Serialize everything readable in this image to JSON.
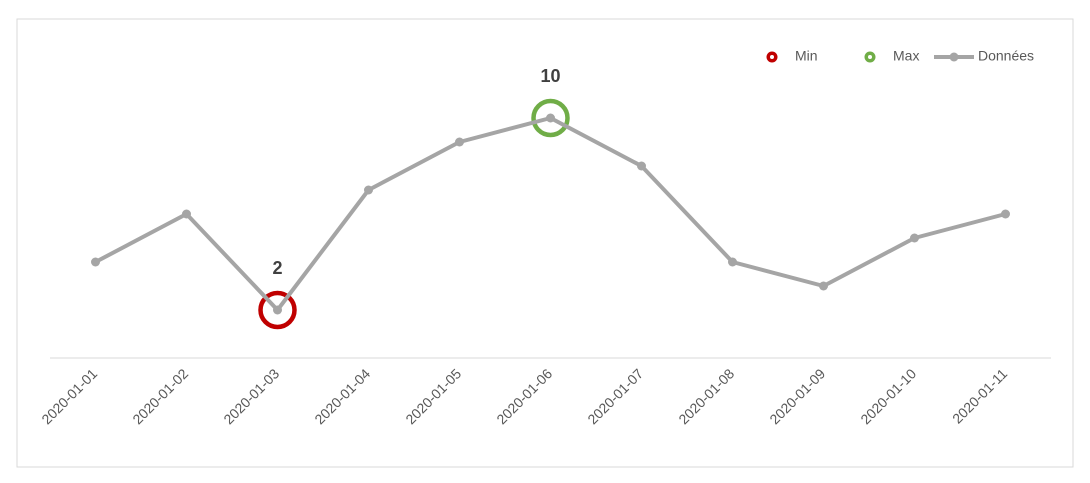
{
  "chart_data": {
    "type": "line",
    "categories": [
      "2020-01-01",
      "2020-01-02",
      "2020-01-03",
      "2020-01-04",
      "2020-01-05",
      "2020-01-06",
      "2020-01-07",
      "2020-01-08",
      "2020-01-09",
      "2020-01-10",
      "2020-01-11"
    ],
    "series": [
      {
        "name": "Min",
        "color": "#c00000",
        "values": [
          null,
          null,
          2,
          null,
          null,
          null,
          null,
          null,
          null,
          null,
          null
        ]
      },
      {
        "name": "Max",
        "color": "#70ad47",
        "values": [
          null,
          null,
          null,
          null,
          null,
          10,
          null,
          null,
          null,
          null,
          null
        ]
      },
      {
        "name": "Données",
        "color": "#a5a5a5",
        "values": [
          4,
          6,
          2,
          7,
          9,
          10,
          8,
          4,
          3,
          5,
          6
        ]
      }
    ],
    "ylim": [
      0,
      12
    ],
    "legend": "top-right"
  }
}
